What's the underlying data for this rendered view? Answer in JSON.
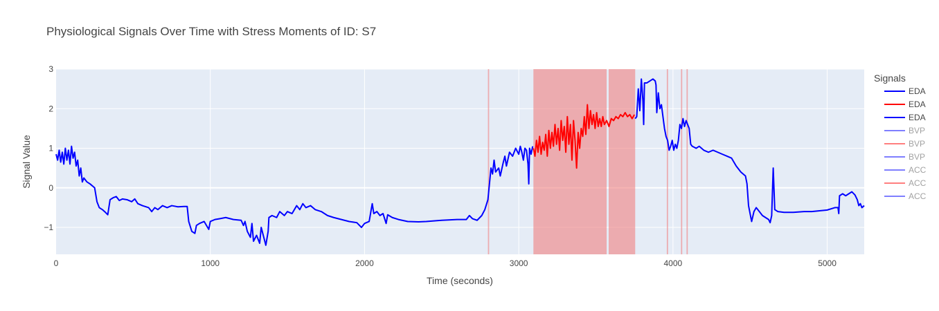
{
  "chart_data": {
    "type": "line",
    "title": "Physiological Signals Over Time with Stress Moments of ID: S7",
    "xlabel": "Time (seconds)",
    "ylabel": "Signal Value",
    "xlim": [
      0,
      5240
    ],
    "ylim": [
      -1.68,
      3.0
    ],
    "x_ticks": [
      0,
      1000,
      2000,
      3000,
      4000,
      5000
    ],
    "y_ticks": [
      -1,
      0,
      1,
      2,
      3
    ],
    "y_tick_labels": [
      "−1",
      "0",
      "1",
      "2",
      "3"
    ],
    "grid": true,
    "legend": {
      "title": "Signals",
      "placement": "right",
      "entries": [
        {
          "name": "EDA",
          "color": "#0000ff",
          "faded": false
        },
        {
          "name": "EDA",
          "color": "#ff0000",
          "faded": false
        },
        {
          "name": "EDA",
          "color": "#0000ff",
          "faded": false
        },
        {
          "name": "BVP",
          "color": "#0000ff",
          "faded": true
        },
        {
          "name": "BVP",
          "color": "#ff0000",
          "faded": true
        },
        {
          "name": "BVP",
          "color": "#0000ff",
          "faded": true
        },
        {
          "name": "ACC",
          "color": "#0000ff",
          "faded": true
        },
        {
          "name": "ACC",
          "color": "#ff0000",
          "faded": true
        },
        {
          "name": "ACC",
          "color": "#0000ff",
          "faded": true
        }
      ]
    },
    "stress_regions": [
      {
        "x0": 2800,
        "x1": 2808
      },
      {
        "x0": 3095,
        "x1": 3570
      },
      {
        "x0": 3583,
        "x1": 3755
      },
      {
        "x0": 3960,
        "x1": 3968
      },
      {
        "x0": 4052,
        "x1": 4060
      },
      {
        "x0": 4088,
        "x1": 4096
      }
    ],
    "series": [
      {
        "name": "EDA",
        "color": "#0000ff",
        "points": [
          [
            0,
            0.85
          ],
          [
            10,
            0.7
          ],
          [
            20,
            0.95
          ],
          [
            30,
            0.65
          ],
          [
            40,
            0.9
          ],
          [
            50,
            0.6
          ],
          [
            60,
            1.0
          ],
          [
            70,
            0.7
          ],
          [
            80,
            0.95
          ],
          [
            90,
            0.6
          ],
          [
            100,
            1.05
          ],
          [
            110,
            0.75
          ],
          [
            120,
            0.9
          ],
          [
            130,
            0.55
          ],
          [
            140,
            0.7
          ],
          [
            150,
            0.3
          ],
          [
            160,
            0.5
          ],
          [
            170,
            0.15
          ],
          [
            180,
            0.25
          ],
          [
            200,
            0.15
          ],
          [
            220,
            0.1
          ],
          [
            250,
            0.0
          ],
          [
            265,
            -0.35
          ],
          [
            280,
            -0.5
          ],
          [
            300,
            -0.55
          ],
          [
            320,
            -0.62
          ],
          [
            335,
            -0.68
          ],
          [
            350,
            -0.3
          ],
          [
            370,
            -0.25
          ],
          [
            390,
            -0.22
          ],
          [
            410,
            -0.32
          ],
          [
            430,
            -0.28
          ],
          [
            460,
            -0.3
          ],
          [
            490,
            -0.35
          ],
          [
            510,
            -0.28
          ],
          [
            530,
            -0.4
          ],
          [
            560,
            -0.45
          ],
          [
            600,
            -0.5
          ],
          [
            620,
            -0.6
          ],
          [
            640,
            -0.5
          ],
          [
            660,
            -0.55
          ],
          [
            690,
            -0.45
          ],
          [
            720,
            -0.5
          ],
          [
            750,
            -0.45
          ],
          [
            790,
            -0.48
          ],
          [
            830,
            -0.47
          ],
          [
            850,
            -0.47
          ],
          [
            860,
            -0.85
          ],
          [
            880,
            -1.1
          ],
          [
            900,
            -1.15
          ],
          [
            910,
            -0.95
          ],
          [
            930,
            -0.9
          ],
          [
            960,
            -0.85
          ],
          [
            990,
            -1.05
          ],
          [
            1000,
            -0.85
          ],
          [
            1030,
            -0.8
          ],
          [
            1060,
            -0.78
          ],
          [
            1100,
            -0.75
          ],
          [
            1150,
            -0.8
          ],
          [
            1200,
            -0.82
          ],
          [
            1215,
            -0.95
          ],
          [
            1225,
            -0.85
          ],
          [
            1240,
            -1.1
          ],
          [
            1260,
            -1.25
          ],
          [
            1270,
            -0.9
          ],
          [
            1280,
            -1.35
          ],
          [
            1300,
            -1.2
          ],
          [
            1320,
            -1.4
          ],
          [
            1330,
            -1.0
          ],
          [
            1350,
            -1.3
          ],
          [
            1360,
            -1.45
          ],
          [
            1375,
            -1.1
          ],
          [
            1380,
            -0.75
          ],
          [
            1400,
            -0.7
          ],
          [
            1430,
            -0.75
          ],
          [
            1450,
            -0.6
          ],
          [
            1480,
            -0.7
          ],
          [
            1500,
            -0.6
          ],
          [
            1530,
            -0.65
          ],
          [
            1560,
            -0.45
          ],
          [
            1580,
            -0.55
          ],
          [
            1600,
            -0.4
          ],
          [
            1620,
            -0.5
          ],
          [
            1650,
            -0.45
          ],
          [
            1680,
            -0.55
          ],
          [
            1720,
            -0.6
          ],
          [
            1760,
            -0.7
          ],
          [
            1800,
            -0.75
          ],
          [
            1850,
            -0.8
          ],
          [
            1900,
            -0.85
          ],
          [
            1950,
            -0.88
          ],
          [
            1980,
            -1.0
          ],
          [
            2000,
            -0.9
          ],
          [
            2030,
            -0.85
          ],
          [
            2050,
            -0.4
          ],
          [
            2060,
            -0.65
          ],
          [
            2080,
            -0.6
          ],
          [
            2100,
            -0.7
          ],
          [
            2120,
            -0.65
          ],
          [
            2140,
            -0.9
          ],
          [
            2150,
            -0.68
          ],
          [
            2180,
            -0.75
          ],
          [
            2220,
            -0.8
          ],
          [
            2280,
            -0.85
          ],
          [
            2350,
            -0.86
          ],
          [
            2400,
            -0.85
          ],
          [
            2500,
            -0.82
          ],
          [
            2600,
            -0.8
          ],
          [
            2660,
            -0.8
          ],
          [
            2680,
            -0.7
          ],
          [
            2700,
            -0.78
          ],
          [
            2730,
            -0.82
          ],
          [
            2760,
            -0.7
          ],
          [
            2780,
            -0.55
          ],
          [
            2800,
            -0.3
          ],
          [
            2810,
            0.1
          ],
          [
            2820,
            0.5
          ],
          [
            2830,
            0.35
          ],
          [
            2840,
            0.7
          ],
          [
            2850,
            0.4
          ],
          [
            2870,
            0.5
          ],
          [
            2880,
            0.3
          ],
          [
            2900,
            0.65
          ],
          [
            2910,
            0.8
          ],
          [
            2920,
            0.55
          ],
          [
            2940,
            0.9
          ],
          [
            2960,
            0.8
          ],
          [
            2980,
            1.0
          ],
          [
            3000,
            0.85
          ],
          [
            3010,
            1.05
          ],
          [
            3020,
            0.9
          ],
          [
            3030,
            0.7
          ],
          [
            3040,
            1.0
          ],
          [
            3050,
            0.95
          ],
          [
            3060,
            0.6
          ],
          [
            3065,
            0.1
          ],
          [
            3070,
            1.0
          ],
          [
            3080,
            0.85
          ],
          [
            3090,
            1.05
          ]
        ]
      },
      {
        "name": "EDA",
        "color": "#ff0000",
        "points": [
          [
            3095,
            1.0
          ],
          [
            3105,
            0.8
          ],
          [
            3115,
            1.2
          ],
          [
            3125,
            0.9
          ],
          [
            3135,
            1.3
          ],
          [
            3145,
            0.85
          ],
          [
            3155,
            1.15
          ],
          [
            3165,
            0.95
          ],
          [
            3175,
            1.35
          ],
          [
            3185,
            0.8
          ],
          [
            3195,
            1.45
          ],
          [
            3205,
            1.0
          ],
          [
            3215,
            1.4
          ],
          [
            3225,
            1.05
          ],
          [
            3235,
            1.6
          ],
          [
            3245,
            1.1
          ],
          [
            3255,
            1.5
          ],
          [
            3265,
            0.95
          ],
          [
            3275,
            1.7
          ],
          [
            3285,
            1.2
          ],
          [
            3295,
            1.55
          ],
          [
            3305,
            0.9
          ],
          [
            3315,
            1.8
          ],
          [
            3325,
            1.1
          ],
          [
            3335,
            1.6
          ],
          [
            3345,
            0.7
          ],
          [
            3355,
            1.7
          ],
          [
            3365,
            1.2
          ],
          [
            3375,
            0.5
          ],
          [
            3385,
            1.4
          ],
          [
            3395,
            1.0
          ],
          [
            3405,
            1.5
          ],
          [
            3415,
            1.3
          ],
          [
            3425,
            1.8
          ],
          [
            3435,
            1.35
          ],
          [
            3445,
            2.1
          ],
          [
            3455,
            1.5
          ],
          [
            3465,
            1.95
          ],
          [
            3475,
            1.6
          ],
          [
            3485,
            1.85
          ],
          [
            3495,
            1.5
          ],
          [
            3505,
            1.9
          ],
          [
            3515,
            1.55
          ],
          [
            3525,
            1.75
          ],
          [
            3535,
            1.55
          ],
          [
            3545,
            1.8
          ],
          [
            3555,
            1.6
          ],
          [
            3570,
            1.7
          ],
          [
            3585,
            1.55
          ],
          [
            3600,
            1.75
          ],
          [
            3615,
            1.7
          ],
          [
            3630,
            1.8
          ],
          [
            3645,
            1.75
          ],
          [
            3660,
            1.85
          ],
          [
            3675,
            1.8
          ],
          [
            3690,
            1.9
          ],
          [
            3705,
            1.8
          ],
          [
            3720,
            1.85
          ],
          [
            3735,
            1.75
          ],
          [
            3750,
            1.85
          ]
        ]
      },
      {
        "name": "EDA",
        "color": "#0000ff",
        "points": [
          [
            3755,
            1.75
          ],
          [
            3765,
            1.8
          ],
          [
            3775,
            2.5
          ],
          [
            3785,
            1.95
          ],
          [
            3795,
            2.75
          ],
          [
            3805,
            2.2
          ],
          [
            3810,
            1.6
          ],
          [
            3815,
            2.65
          ],
          [
            3830,
            2.65
          ],
          [
            3850,
            2.7
          ],
          [
            3870,
            2.75
          ],
          [
            3885,
            2.7
          ],
          [
            3890,
            2.6
          ],
          [
            3895,
            1.9
          ],
          [
            3905,
            2.4
          ],
          [
            3915,
            2.0
          ],
          [
            3925,
            2.1
          ],
          [
            3935,
            1.8
          ],
          [
            3945,
            1.5
          ],
          [
            3955,
            1.3
          ],
          [
            3965,
            1.2
          ],
          [
            3975,
            0.95
          ],
          [
            3985,
            1.05
          ],
          [
            3995,
            1.2
          ],
          [
            4005,
            0.95
          ],
          [
            4015,
            1.1
          ],
          [
            4025,
            1.0
          ],
          [
            4035,
            1.2
          ],
          [
            4045,
            1.6
          ],
          [
            4055,
            1.5
          ],
          [
            4065,
            1.75
          ],
          [
            4075,
            1.55
          ],
          [
            4085,
            1.7
          ],
          [
            4095,
            1.6
          ],
          [
            4105,
            1.5
          ],
          [
            4115,
            1.1
          ],
          [
            4125,
            1.05
          ],
          [
            4150,
            1.0
          ],
          [
            4170,
            1.05
          ],
          [
            4200,
            0.95
          ],
          [
            4230,
            0.9
          ],
          [
            4260,
            0.95
          ],
          [
            4290,
            0.9
          ],
          [
            4320,
            0.85
          ],
          [
            4350,
            0.8
          ],
          [
            4380,
            0.75
          ],
          [
            4410,
            0.55
          ],
          [
            4440,
            0.4
          ],
          [
            4470,
            0.3
          ],
          [
            4480,
            0.1
          ],
          [
            4490,
            -0.45
          ],
          [
            4500,
            -0.65
          ],
          [
            4510,
            -0.85
          ],
          [
            4525,
            -0.6
          ],
          [
            4540,
            -0.5
          ],
          [
            4560,
            -0.6
          ],
          [
            4580,
            -0.7
          ],
          [
            4600,
            -0.75
          ],
          [
            4620,
            -0.8
          ],
          [
            4630,
            -0.88
          ],
          [
            4640,
            -0.7
          ],
          [
            4650,
            0.5
          ],
          [
            4660,
            -0.55
          ],
          [
            4680,
            -0.6
          ],
          [
            4720,
            -0.62
          ],
          [
            4780,
            -0.62
          ],
          [
            4850,
            -0.6
          ],
          [
            4900,
            -0.6
          ],
          [
            4950,
            -0.58
          ],
          [
            5000,
            -0.56
          ],
          [
            5050,
            -0.5
          ],
          [
            5070,
            -0.5
          ],
          [
            5075,
            -0.65
          ],
          [
            5080,
            -0.2
          ],
          [
            5100,
            -0.15
          ],
          [
            5120,
            -0.2
          ],
          [
            5140,
            -0.15
          ],
          [
            5160,
            -0.1
          ],
          [
            5180,
            -0.18
          ],
          [
            5195,
            -0.3
          ],
          [
            5205,
            -0.45
          ],
          [
            5215,
            -0.4
          ],
          [
            5225,
            -0.5
          ],
          [
            5240,
            -0.45
          ]
        ]
      }
    ]
  }
}
